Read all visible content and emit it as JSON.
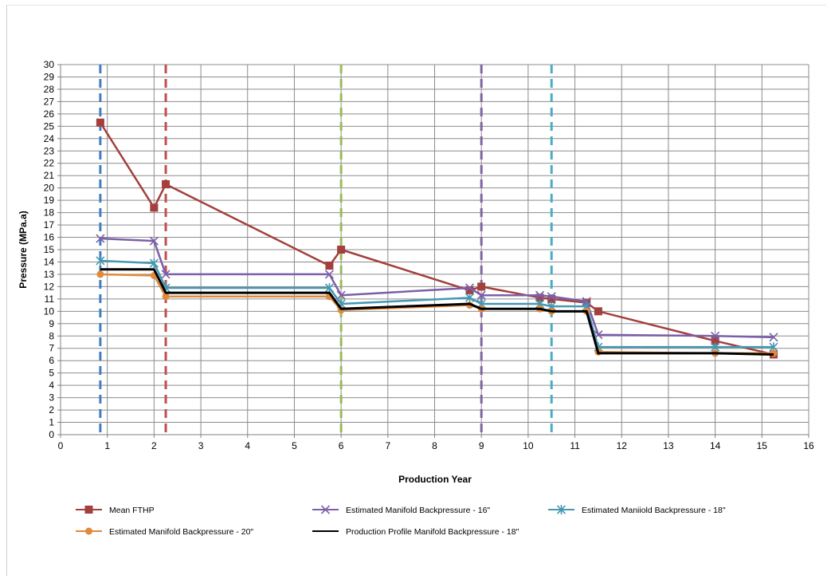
{
  "chart_data": {
    "type": "line",
    "title": "",
    "xlabel": "Production Year",
    "ylabel": "Pressure (MPa.a)",
    "xlim": [
      0,
      16
    ],
    "ylim": [
      0,
      30
    ],
    "x_ticks": [
      "0",
      "1",
      "2",
      "3",
      "4",
      "5",
      "6",
      "7",
      "8",
      "9",
      "10",
      "11",
      "12",
      "13",
      "14",
      "15",
      "16"
    ],
    "y_ticks": [
      "0",
      "1",
      "2",
      "3",
      "4",
      "5",
      "6",
      "7",
      "8",
      "9",
      "10",
      "11",
      "12",
      "13",
      "14",
      "15",
      "16",
      "17",
      "18",
      "19",
      "20",
      "21",
      "22",
      "23",
      "24",
      "25",
      "26",
      "27",
      "28",
      "29",
      "30"
    ],
    "grid": true,
    "legend_position": "bottom",
    "series": [
      {
        "name": "Mean FTHP",
        "color": "#a33f3c",
        "marker": "square",
        "points": [
          [
            0.85,
            25.3
          ],
          [
            2.0,
            18.4
          ],
          [
            2.25,
            20.3
          ],
          [
            5.75,
            13.7
          ],
          [
            6.0,
            15.0
          ],
          [
            8.75,
            11.7
          ],
          [
            9.0,
            12.0
          ],
          [
            10.25,
            11.1
          ],
          [
            10.5,
            11.0
          ],
          [
            11.25,
            10.7
          ],
          [
            11.5,
            10.0
          ],
          [
            14.0,
            7.6
          ],
          [
            15.25,
            6.5
          ]
        ]
      },
      {
        "name": "Estimated Manifold Backpressure - 16\"",
        "color": "#7b5fa9",
        "marker": "x",
        "points": [
          [
            0.85,
            15.9
          ],
          [
            2.0,
            15.7
          ],
          [
            2.25,
            13.0
          ],
          [
            5.75,
            13.0
          ],
          [
            6.0,
            11.3
          ],
          [
            8.75,
            11.9
          ],
          [
            9.0,
            11.3
          ],
          [
            10.25,
            11.3
          ],
          [
            10.5,
            11.2
          ],
          [
            11.25,
            10.8
          ],
          [
            11.5,
            8.1
          ],
          [
            14.0,
            8.0
          ],
          [
            15.25,
            7.9
          ]
        ]
      },
      {
        "name": "Estimated Maniiold Backpressure - 18\"",
        "color": "#4598b2",
        "marker": "asterisk",
        "points": [
          [
            0.85,
            14.1
          ],
          [
            2.0,
            13.9
          ],
          [
            2.25,
            11.9
          ],
          [
            5.75,
            11.9
          ],
          [
            6.0,
            10.6
          ],
          [
            8.75,
            11.1
          ],
          [
            9.0,
            10.6
          ],
          [
            10.25,
            10.6
          ],
          [
            10.5,
            10.4
          ],
          [
            11.25,
            10.4
          ],
          [
            11.5,
            7.1
          ],
          [
            14.0,
            7.1
          ],
          [
            15.25,
            7.1
          ]
        ]
      },
      {
        "name": "Estimated Manifold Backpressure - 20\"",
        "color": "#e08a3c",
        "marker": "circle",
        "points": [
          [
            0.85,
            13.0
          ],
          [
            2.0,
            12.9
          ],
          [
            2.25,
            11.2
          ],
          [
            5.75,
            11.2
          ],
          [
            6.0,
            10.1
          ],
          [
            8.75,
            10.5
          ],
          [
            9.0,
            10.2
          ],
          [
            10.25,
            10.2
          ],
          [
            10.5,
            10.0
          ],
          [
            11.25,
            10.0
          ],
          [
            11.5,
            6.7
          ],
          [
            14.0,
            6.6
          ],
          [
            15.25,
            6.6
          ]
        ]
      },
      {
        "name": "Production Profile Manifold Backpressure - 18\"",
        "color": "#000000",
        "marker": "none",
        "points": [
          [
            0.85,
            13.4
          ],
          [
            2.0,
            13.4
          ],
          [
            2.25,
            11.5
          ],
          [
            5.75,
            11.5
          ],
          [
            6.0,
            10.2
          ],
          [
            8.75,
            10.6
          ],
          [
            9.0,
            10.2
          ],
          [
            10.25,
            10.2
          ],
          [
            10.5,
            10.0
          ],
          [
            11.25,
            10.0
          ],
          [
            11.5,
            6.6
          ],
          [
            14.0,
            6.6
          ],
          [
            15.25,
            6.5
          ]
        ]
      }
    ],
    "vertical_markers": [
      {
        "x": 0.85,
        "color": "#3f7fc0"
      },
      {
        "x": 2.25,
        "color": "#c0504d"
      },
      {
        "x": 6.0,
        "color": "#9bbb59"
      },
      {
        "x": 9.0,
        "color": "#8064a2"
      },
      {
        "x": 10.5,
        "color": "#4bacc6"
      }
    ]
  }
}
